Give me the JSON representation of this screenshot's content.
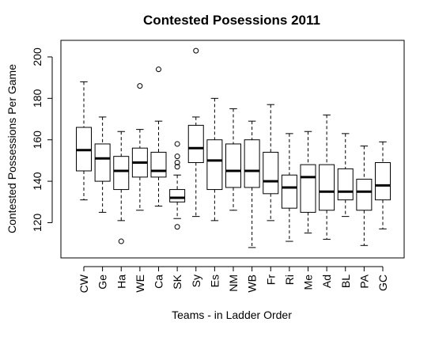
{
  "chart_data": {
    "type": "boxplot",
    "title": "Contested Posessions 2011",
    "xlabel": "Teams - in Ladder Order",
    "ylabel": "Contested Possessions Per Game",
    "ylim": [
      103,
      208
    ],
    "yticks": [
      120,
      140,
      160,
      180,
      200
    ],
    "categories": [
      "CW",
      "Ge",
      "Ha",
      "WE",
      "Ca",
      "SK",
      "Sy",
      "Es",
      "NM",
      "WB",
      "Fr",
      "Ri",
      "Me",
      "Ad",
      "BL",
      "PA",
      "GC"
    ],
    "boxes": [
      {
        "min": 131,
        "q1": 145,
        "median": 155,
        "q3": 166,
        "max": 188,
        "outliers": []
      },
      {
        "min": 125,
        "q1": 140,
        "median": 151,
        "q3": 158,
        "max": 171,
        "outliers": []
      },
      {
        "min": 121,
        "q1": 136,
        "median": 145,
        "q3": 152,
        "max": 164,
        "outliers": [
          111
        ]
      },
      {
        "min": 126,
        "q1": 142,
        "median": 149,
        "q3": 156,
        "max": 165,
        "outliers": [
          186
        ]
      },
      {
        "min": 128,
        "q1": 142,
        "median": 145,
        "q3": 154,
        "max": 169,
        "outliers": [
          194
        ]
      },
      {
        "min": 122,
        "q1": 130,
        "median": 132,
        "q3": 136,
        "max": 143,
        "outliers": [
          118,
          147,
          149,
          152,
          158
        ]
      },
      {
        "min": 123,
        "q1": 149,
        "median": 156,
        "q3": 167,
        "max": 171,
        "outliers": [
          203
        ]
      },
      {
        "min": 121,
        "q1": 136,
        "median": 150,
        "q3": 160,
        "max": 180,
        "outliers": []
      },
      {
        "min": 126,
        "q1": 137,
        "median": 145,
        "q3": 158,
        "max": 175,
        "outliers": []
      },
      {
        "min": 108,
        "q1": 137,
        "median": 145,
        "q3": 160,
        "max": 169,
        "outliers": []
      },
      {
        "min": 121,
        "q1": 134,
        "median": 140,
        "q3": 154,
        "max": 177,
        "outliers": []
      },
      {
        "min": 111,
        "q1": 127,
        "median": 137,
        "q3": 143,
        "max": 163,
        "outliers": []
      },
      {
        "min": 115,
        "q1": 125,
        "median": 142,
        "q3": 148,
        "max": 164,
        "outliers": []
      },
      {
        "min": 112,
        "q1": 126,
        "median": 135,
        "q3": 148,
        "max": 172,
        "outliers": []
      },
      {
        "min": 123,
        "q1": 131,
        "median": 135,
        "q3": 146,
        "max": 163,
        "outliers": []
      },
      {
        "min": 109,
        "q1": 126,
        "median": 135,
        "q3": 141,
        "max": 157,
        "outliers": []
      },
      {
        "min": 117,
        "q1": 131,
        "median": 138,
        "q3": 149,
        "max": 159,
        "outliers": []
      }
    ]
  }
}
